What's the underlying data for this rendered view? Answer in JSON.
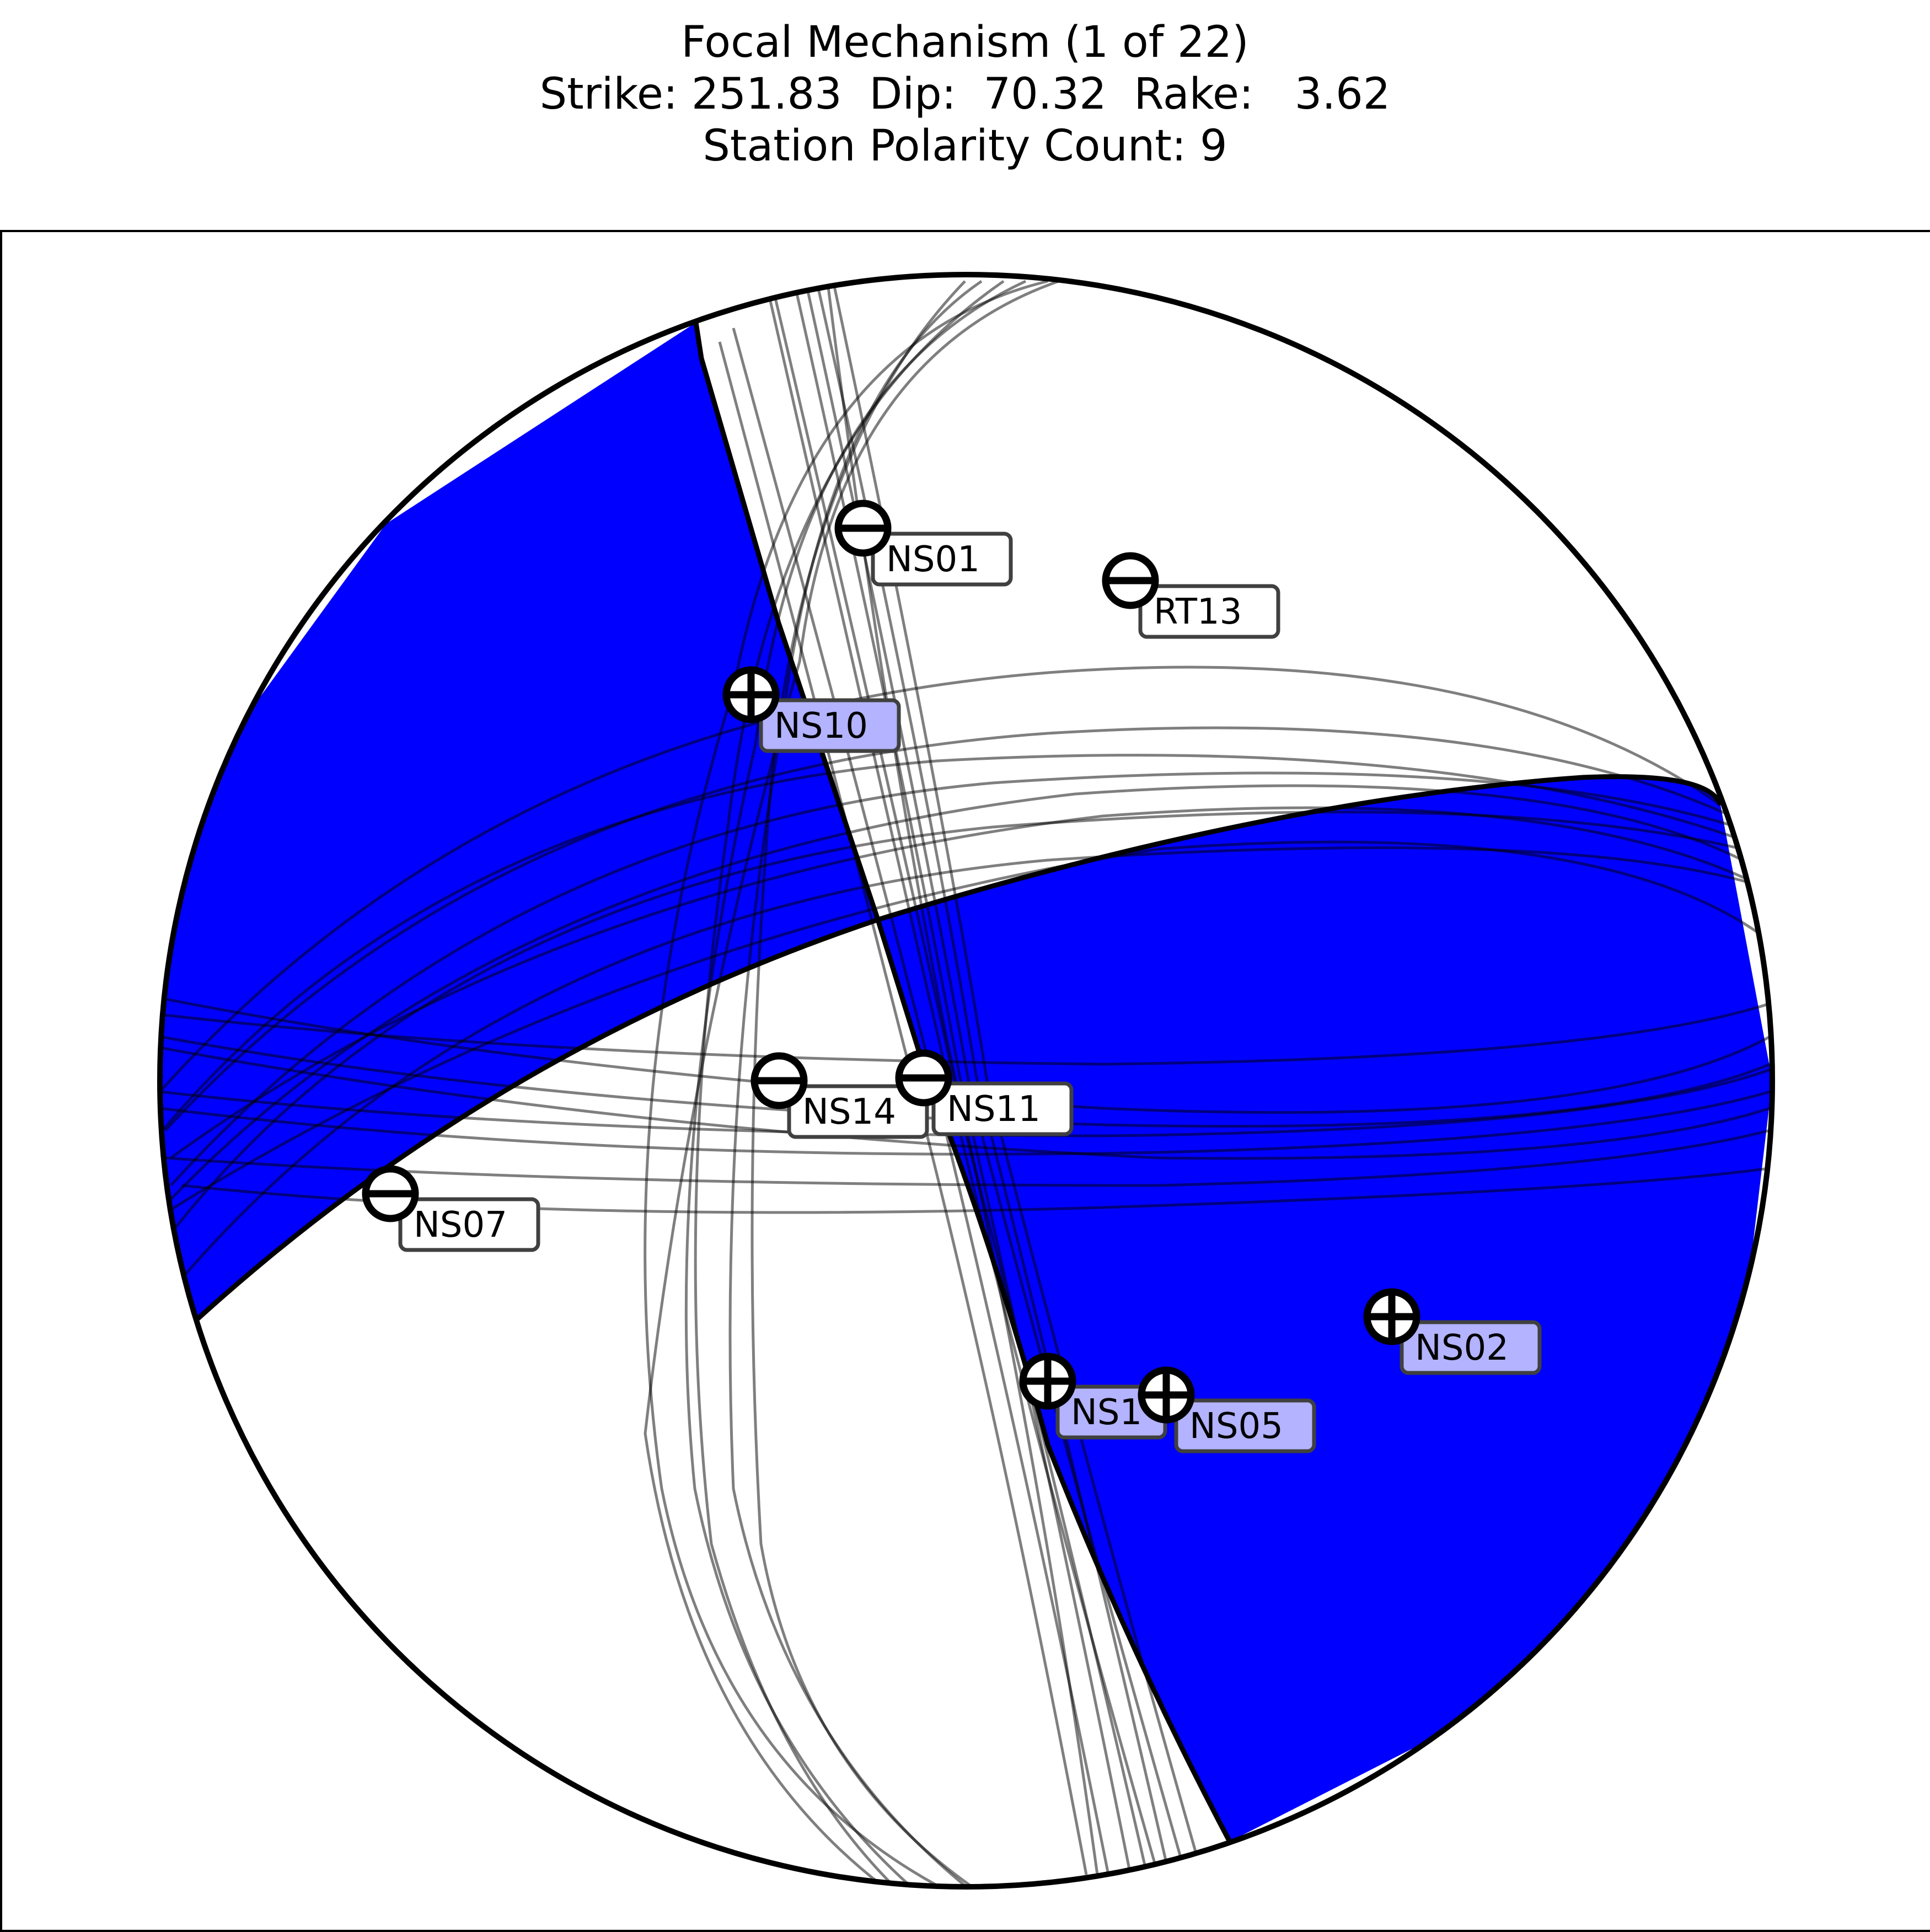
{
  "title": {
    "line1": "Focal Mechanism (1 of 22)",
    "line2": "Strike: 251.83  Dip:  70.32  Rake:   3.62",
    "line3": "Station Polarity Count: 9"
  },
  "colors": {
    "compression_fill": "#0000ff",
    "dilatation_fill": "#ffffff",
    "outline": "#000000",
    "alt_planes": "rgba(0,0,0,0.5)",
    "positive_label_bg": "#b3b3ff",
    "negative_label_bg": "#ffffff"
  },
  "stations": [
    {
      "name": "NS01",
      "polarity": "-"
    },
    {
      "name": "RT13",
      "polarity": "-"
    },
    {
      "name": "NS10",
      "polarity": "+"
    },
    {
      "name": "NS14",
      "polarity": "-"
    },
    {
      "name": "NS11",
      "polarity": "-"
    },
    {
      "name": "NS07",
      "polarity": "-"
    },
    {
      "name": "NS02",
      "polarity": "+"
    },
    {
      "name": "NS1",
      "polarity": "+"
    },
    {
      "name": "NS05",
      "polarity": "+"
    }
  ]
}
